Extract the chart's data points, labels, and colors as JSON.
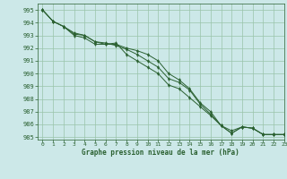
{
  "title": "Graphe pression niveau de la mer (hPa)",
  "background_color": "#cce8e8",
  "grid_color": "#99c4aa",
  "line_color": "#2a6030",
  "xlim": [
    -0.5,
    23
  ],
  "ylim": [
    984.8,
    995.5
  ],
  "xticks": [
    0,
    1,
    2,
    3,
    4,
    5,
    6,
    7,
    8,
    9,
    10,
    11,
    12,
    13,
    14,
    15,
    16,
    17,
    18,
    19,
    20,
    21,
    22,
    23
  ],
  "yticks": [
    985,
    986,
    987,
    988,
    989,
    990,
    991,
    992,
    993,
    994,
    995
  ],
  "series": [
    [
      995.0,
      994.1,
      993.7,
      993.0,
      992.8,
      992.3,
      992.3,
      992.4,
      991.5,
      991.0,
      990.5,
      990.0,
      989.1,
      988.8,
      988.1,
      987.4,
      986.7,
      985.9,
      985.3,
      985.8,
      985.7,
      985.2,
      985.2,
      985.2
    ],
    [
      995.0,
      994.1,
      993.7,
      993.1,
      993.0,
      992.5,
      992.4,
      992.2,
      991.9,
      991.5,
      991.0,
      990.5,
      989.6,
      989.3,
      988.7,
      987.6,
      986.8,
      985.9,
      985.3,
      985.8,
      985.7,
      985.2,
      985.2,
      985.2
    ],
    [
      995.0,
      994.1,
      993.7,
      993.2,
      993.0,
      992.5,
      992.3,
      992.3,
      992.0,
      991.8,
      991.5,
      991.0,
      990.0,
      989.5,
      988.8,
      987.7,
      987.0,
      985.9,
      985.5,
      985.8,
      985.7,
      985.2,
      985.2,
      985.2
    ]
  ]
}
